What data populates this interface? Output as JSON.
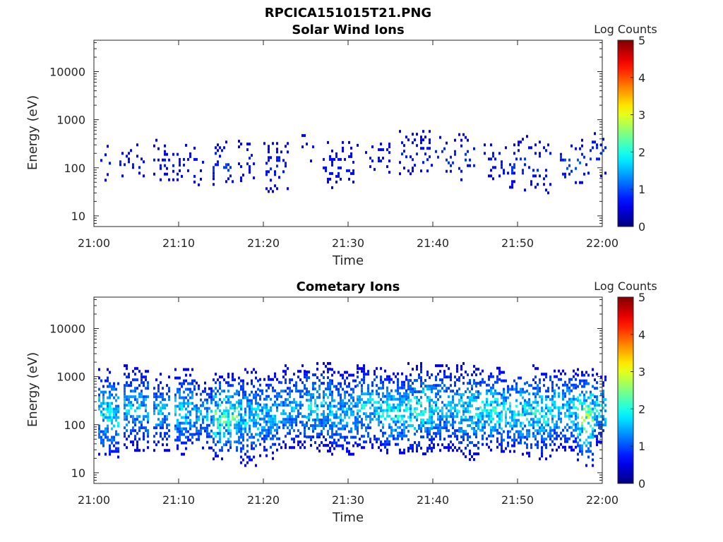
{
  "figure": {
    "title": "RPCICA151015T21.PNG"
  },
  "chart_data": [
    {
      "type": "heatmap",
      "title": "Solar Wind Ions",
      "xlabel": "Time",
      "ylabel": "Energy (eV)",
      "x_ticks": [
        "21:00",
        "21:10",
        "21:20",
        "21:30",
        "21:40",
        "21:50",
        "22:00"
      ],
      "x_range": [
        "21:00",
        "22:00"
      ],
      "y_scale": "log",
      "y_ticks": [
        10,
        100,
        1000,
        10000
      ],
      "y_tick_labels": [
        "10",
        "100",
        "1000",
        "10000"
      ],
      "y_range": [
        6,
        45000
      ],
      "colorbar": {
        "label": "Log Counts",
        "range": [
          0,
          5
        ],
        "ticks": [
          "0",
          "1",
          "2",
          "3",
          "4",
          "5"
        ],
        "colormap": "jet"
      },
      "activity": [
        {
          "start": "21:00.5",
          "end": "21:02",
          "e_low": 40,
          "e_high": 300,
          "level": 0.3
        },
        {
          "start": "21:03",
          "end": "21:06",
          "e_low": 60,
          "e_high": 320,
          "level": 0.3
        },
        {
          "start": "21:07",
          "end": "21:10",
          "e_low": 50,
          "e_high": 400,
          "level": 0.3
        },
        {
          "start": "21:10",
          "end": "21:13",
          "e_low": 35,
          "e_high": 360,
          "level": 0.3
        },
        {
          "start": "21:14",
          "end": "21:16.5",
          "e_low": 40,
          "e_high": 420,
          "level": 0.5
        },
        {
          "start": "21:17",
          "end": "21:19",
          "e_low": 45,
          "e_high": 500,
          "level": 0.3
        },
        {
          "start": "21:20",
          "end": "21:23",
          "e_low": 30,
          "e_high": 450,
          "level": 0.3
        },
        {
          "start": "21:24",
          "end": "21:26",
          "e_low": 120,
          "e_high": 500,
          "level": 0.3
        },
        {
          "start": "21:27",
          "end": "21:31",
          "e_low": 40,
          "e_high": 360,
          "level": 0.3
        },
        {
          "start": "21:32",
          "end": "21:35",
          "e_low": 70,
          "e_high": 500,
          "level": 0.3
        },
        {
          "start": "21:36",
          "end": "21:40",
          "e_low": 60,
          "e_high": 700,
          "level": 0.3
        },
        {
          "start": "21:40",
          "end": "21:45",
          "e_low": 50,
          "e_high": 600,
          "level": 0.4
        },
        {
          "start": "21:46",
          "end": "21:49",
          "e_low": 50,
          "e_high": 420,
          "level": 0.3
        },
        {
          "start": "21:49",
          "end": "21:54",
          "e_low": 30,
          "e_high": 550,
          "level": 0.4
        },
        {
          "start": "21:55",
          "end": "21:58",
          "e_low": 40,
          "e_high": 400,
          "level": 0.6
        },
        {
          "start": "21:58",
          "end": "22:00.5",
          "e_low": 70,
          "e_high": 550,
          "level": 0.5
        }
      ]
    },
    {
      "type": "heatmap",
      "title": "Cometary Ions",
      "xlabel": "Time",
      "ylabel": "Energy (eV)",
      "x_ticks": [
        "21:00",
        "21:10",
        "21:20",
        "21:30",
        "21:40",
        "21:50",
        "22:00"
      ],
      "x_range": [
        "21:00",
        "22:00"
      ],
      "y_scale": "log",
      "y_ticks": [
        10,
        100,
        1000,
        10000
      ],
      "y_tick_labels": [
        "10",
        "100",
        "1000",
        "10000"
      ],
      "y_range": [
        6,
        45000
      ],
      "colorbar": {
        "label": "Log Counts",
        "range": [
          0,
          5
        ],
        "ticks": [
          "0",
          "1",
          "2",
          "3",
          "4",
          "5"
        ],
        "colormap": "jet"
      },
      "activity": [
        {
          "start": "21:00.5",
          "end": "21:03",
          "e_low": 20,
          "e_high": 1500,
          "level": 1.6
        },
        {
          "start": "21:03.5",
          "end": "21:06.5",
          "e_low": 30,
          "e_high": 1800,
          "level": 1.3
        },
        {
          "start": "21:07",
          "end": "21:09",
          "e_low": 30,
          "e_high": 1200,
          "level": 1.2
        },
        {
          "start": "21:09.5",
          "end": "21:12",
          "e_low": 25,
          "e_high": 1500,
          "level": 1.4
        },
        {
          "start": "21:12",
          "end": "21:14",
          "e_low": 30,
          "e_high": 900,
          "level": 1.2
        },
        {
          "start": "21:14",
          "end": "21:17",
          "e_low": 20,
          "e_high": 1200,
          "level": 2.0
        },
        {
          "start": "21:17",
          "end": "21:19.5",
          "e_low": 15,
          "e_high": 1500,
          "level": 1.5
        },
        {
          "start": "21:19.5",
          "end": "21:22",
          "e_low": 20,
          "e_high": 1400,
          "level": 1.3
        },
        {
          "start": "21:22",
          "end": "21:25",
          "e_low": 30,
          "e_high": 1800,
          "level": 1.2
        },
        {
          "start": "21:25",
          "end": "21:28",
          "e_low": 30,
          "e_high": 2000,
          "level": 1.4
        },
        {
          "start": "21:28",
          "end": "21:31",
          "e_low": 25,
          "e_high": 1500,
          "level": 1.3
        },
        {
          "start": "21:31",
          "end": "21:34",
          "e_low": 30,
          "e_high": 1800,
          "level": 1.5
        },
        {
          "start": "21:34",
          "end": "21:37",
          "e_low": 25,
          "e_high": 1400,
          "level": 1.6
        },
        {
          "start": "21:37",
          "end": "21:40",
          "e_low": 25,
          "e_high": 2000,
          "level": 1.7
        },
        {
          "start": "21:40",
          "end": "21:43",
          "e_low": 30,
          "e_high": 1800,
          "level": 1.3
        },
        {
          "start": "21:43",
          "end": "21:45.5",
          "e_low": 20,
          "e_high": 2000,
          "level": 1.5
        },
        {
          "start": "21:45.5",
          "end": "21:48",
          "e_low": 30,
          "e_high": 1600,
          "level": 1.8
        },
        {
          "start": "21:48",
          "end": "21:51",
          "e_low": 25,
          "e_high": 1500,
          "level": 1.7
        },
        {
          "start": "21:51",
          "end": "21:54",
          "e_low": 20,
          "e_high": 1800,
          "level": 1.6
        },
        {
          "start": "21:54",
          "end": "21:57",
          "e_low": 30,
          "e_high": 1600,
          "level": 1.5
        },
        {
          "start": "21:57",
          "end": "21:59",
          "e_low": 15,
          "e_high": 1500,
          "level": 2.2
        },
        {
          "start": "21:59",
          "end": "22:00.5",
          "e_low": 40,
          "e_high": 1200,
          "level": 1.6
        }
      ]
    }
  ],
  "colors": {
    "axis": "#262626",
    "background": "#ffffff"
  }
}
